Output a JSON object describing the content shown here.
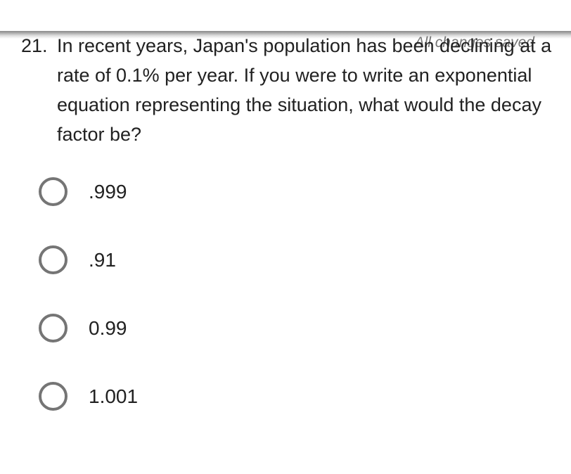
{
  "status_bar": {
    "saved_label": "All changes saved"
  },
  "question": {
    "number": "21.",
    "text": "In recent years, Japan's population has been declining at a rate of 0.1% per year. If you were to write an exponential equation representing the situation, what would the decay factor be?"
  },
  "options": [
    {
      "label": ".999",
      "selected": false
    },
    {
      "label": ".91",
      "selected": false
    },
    {
      "label": "0.99",
      "selected": false
    },
    {
      "label": "1.001",
      "selected": false
    }
  ],
  "colors": {
    "text": "#212121",
    "muted_text": "#757575",
    "radio_border": "#757575",
    "background": "#ffffff"
  }
}
